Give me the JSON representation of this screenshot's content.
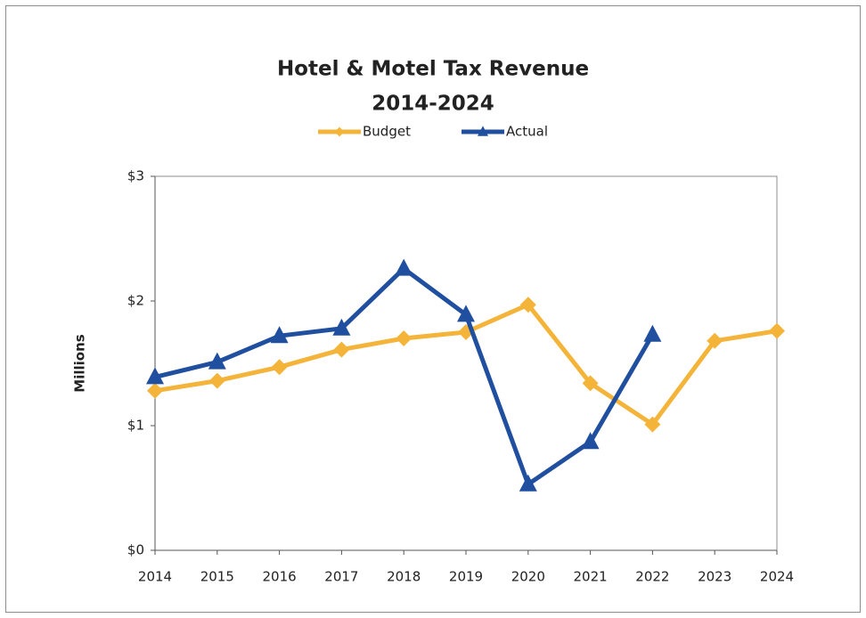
{
  "chart_data": {
    "type": "line",
    "title": "Hotel & Motel Tax Revenue",
    "subtitle": "2014-2024",
    "y_label": "Millions",
    "x": [
      2014,
      2015,
      2016,
      2017,
      2018,
      2019,
      2020,
      2021,
      2022,
      2023,
      2024
    ],
    "xlim": [
      2014,
      2024
    ],
    "xticks": [
      2014,
      2015,
      2016,
      2017,
      2018,
      2019,
      2020,
      2021,
      2022,
      2023,
      2024
    ],
    "ylim": [
      0,
      3
    ],
    "yticks": [
      {
        "value": 0,
        "label": "$0"
      },
      {
        "value": 1,
        "label": "$1"
      },
      {
        "value": 2,
        "label": "$2"
      },
      {
        "value": 3,
        "label": "$3"
      }
    ],
    "grid": false,
    "legend": "top",
    "series": [
      {
        "name": "Budget",
        "color": "#f4b43a",
        "marker": "diamond",
        "values": [
          1.28,
          1.36,
          1.47,
          1.61,
          1.7,
          1.75,
          1.97,
          1.34,
          1.01,
          1.68,
          1.76
        ]
      },
      {
        "name": "Actual",
        "color": "#1f4f9e",
        "marker": "triangle",
        "values": [
          1.39,
          1.51,
          1.72,
          1.78,
          2.26,
          1.89,
          0.53,
          0.87,
          1.73,
          null,
          null
        ]
      }
    ]
  }
}
